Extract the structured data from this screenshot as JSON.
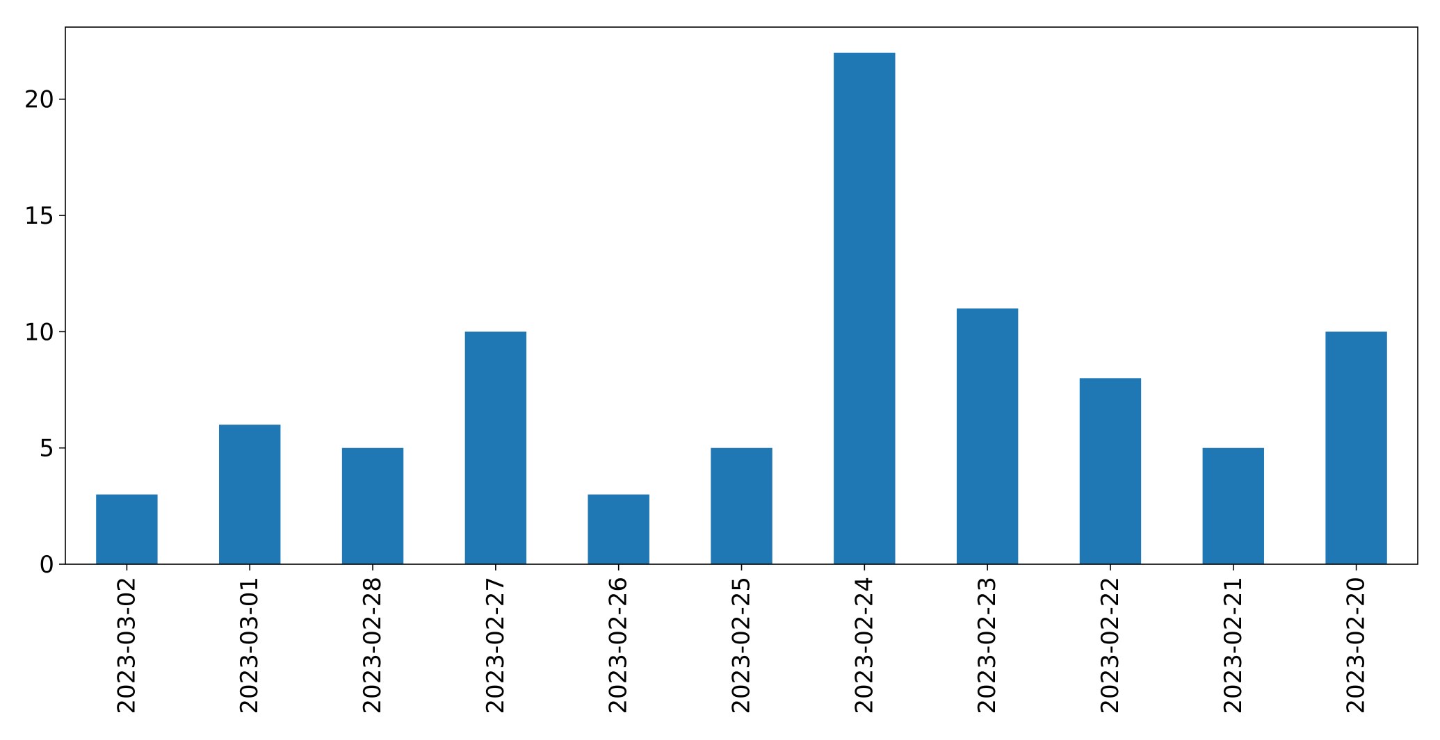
{
  "chart_data": {
    "type": "bar",
    "title": "",
    "xlabel": "",
    "ylabel": "",
    "categories": [
      "2023-03-02",
      "2023-03-01",
      "2023-02-28",
      "2023-02-27",
      "2023-02-26",
      "2023-02-25",
      "2023-02-24",
      "2023-02-23",
      "2023-02-22",
      "2023-02-21",
      "2023-02-20"
    ],
    "values": [
      3,
      6,
      5,
      10,
      3,
      5,
      22,
      11,
      8,
      5,
      10
    ],
    "ylim": [
      0,
      23.1
    ],
    "yticks": [
      0,
      5,
      10,
      15,
      20
    ],
    "grid": false,
    "legend": "none",
    "colors": {
      "bar": "#1f77b4",
      "axes": "#000000",
      "background": "#ffffff"
    }
  }
}
